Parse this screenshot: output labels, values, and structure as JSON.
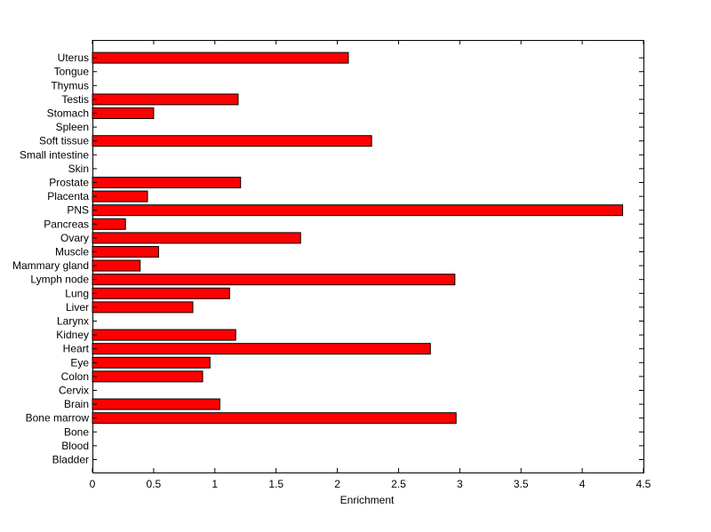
{
  "chart_data": {
    "type": "bar",
    "orientation": "horizontal",
    "title": "",
    "xlabel": "Enrichment",
    "ylabel": "",
    "xlim": [
      0,
      4.5
    ],
    "xticks": [
      0,
      0.5,
      1,
      1.5,
      2,
      2.5,
      3,
      3.5,
      4,
      4.5
    ],
    "xtick_labels": [
      "0",
      "0.5",
      "1",
      "1.5",
      "2",
      "2.5",
      "3",
      "3.5",
      "4",
      "4.5"
    ],
    "grid": false,
    "legend": "none",
    "bar_color": "#ff0000",
    "bar_edge_color": "#000000",
    "categories": [
      "Bladder",
      "Blood",
      "Bone",
      "Bone marrow",
      "Brain",
      "Cervix",
      "Colon",
      "Eye",
      "Heart",
      "Kidney",
      "Larynx",
      "Liver",
      "Lung",
      "Lymph node",
      "Mammary gland",
      "Muscle",
      "Ovary",
      "Pancreas",
      "PNS",
      "Placenta",
      "Prostate",
      "Skin",
      "Small intestine",
      "Soft tissue",
      "Spleen",
      "Stomach",
      "Testis",
      "Thymus",
      "Tongue",
      "Uterus"
    ],
    "values": [
      0,
      0,
      0,
      2.97,
      1.04,
      0,
      0.9,
      0.96,
      2.76,
      1.17,
      0,
      0.82,
      1.12,
      2.96,
      0.39,
      0.54,
      1.7,
      0.27,
      4.33,
      0.45,
      1.21,
      0,
      0,
      2.28,
      0,
      0.5,
      1.19,
      0,
      0,
      2.09
    ]
  }
}
